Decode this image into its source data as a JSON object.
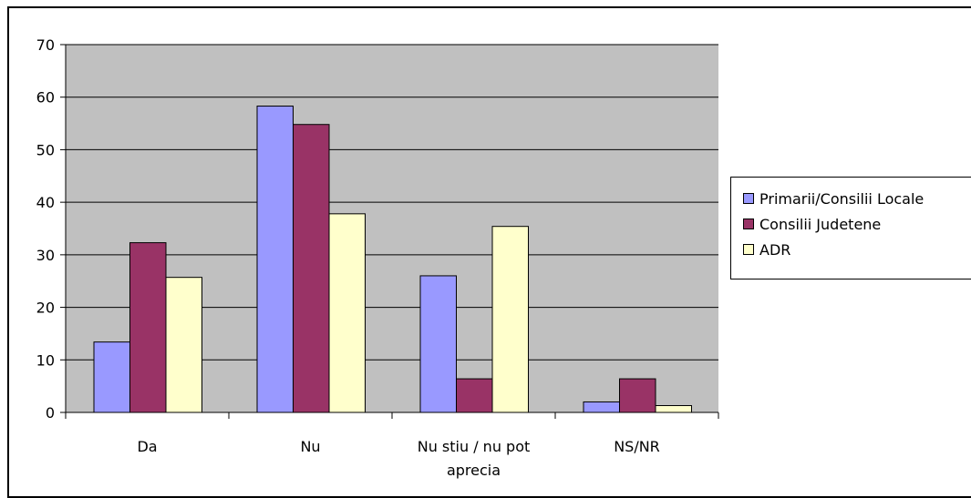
{
  "chart_data": {
    "type": "bar",
    "categories": [
      "Da",
      "Nu",
      "Nu stiu / nu pot aprecia",
      "NS/NR"
    ],
    "category_label_lines": [
      [
        "Da"
      ],
      [
        "Nu"
      ],
      [
        "Nu stiu / nu pot",
        "aprecia"
      ],
      [
        "NS/NR"
      ]
    ],
    "series": [
      {
        "name": "Primarii/Consilii Locale",
        "color": "#9999ff",
        "values": [
          13.4,
          58.3,
          26.0,
          2.0
        ]
      },
      {
        "name": "Consilii Judetene",
        "color": "#993366",
        "values": [
          32.3,
          54.8,
          6.4,
          6.4
        ]
      },
      {
        "name": "ADR",
        "color": "#ffffcc",
        "values": [
          25.7,
          37.8,
          35.4,
          1.3
        ]
      }
    ],
    "ylim": [
      0,
      70
    ],
    "yticks": [
      0,
      10,
      20,
      30,
      40,
      50,
      60,
      70
    ],
    "grid": true,
    "plot_background": "#c0c0c0",
    "legend_position": "right",
    "title": "",
    "xlabel": "",
    "ylabel": ""
  }
}
